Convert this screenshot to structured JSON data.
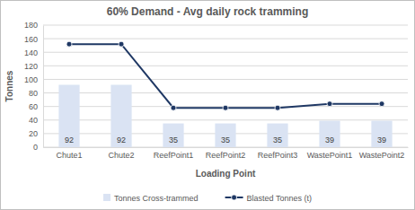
{
  "chart_data": {
    "type": "bar",
    "title": "60% Demand - Avg daily rock tramming",
    "x_label": "Loading Point",
    "y_label": "Tonnes",
    "categories": [
      "Chute1",
      "Chute2",
      "ReefPoint1",
      "ReefPoint2",
      "ReefPoint3",
      "WastePoint1",
      "WastePoint2"
    ],
    "series": [
      {
        "name": "Tonnes Cross-trammed",
        "type": "bar",
        "color": "#dae3f3",
        "data_labels": true,
        "values": [
          92,
          92,
          35,
          35,
          35,
          39,
          39
        ]
      },
      {
        "name": "Blasted Tonnes (t)",
        "type": "line",
        "color": "#1f3864",
        "marker": "circle",
        "line_style": "solid",
        "values": [
          152,
          152,
          58,
          58,
          58,
          64,
          64
        ]
      }
    ],
    "ylim": [
      0,
      180
    ],
    "yticks": [
      0,
      20,
      40,
      60,
      80,
      100,
      120,
      140,
      160,
      180
    ],
    "grid": true,
    "legend": "bottom"
  }
}
